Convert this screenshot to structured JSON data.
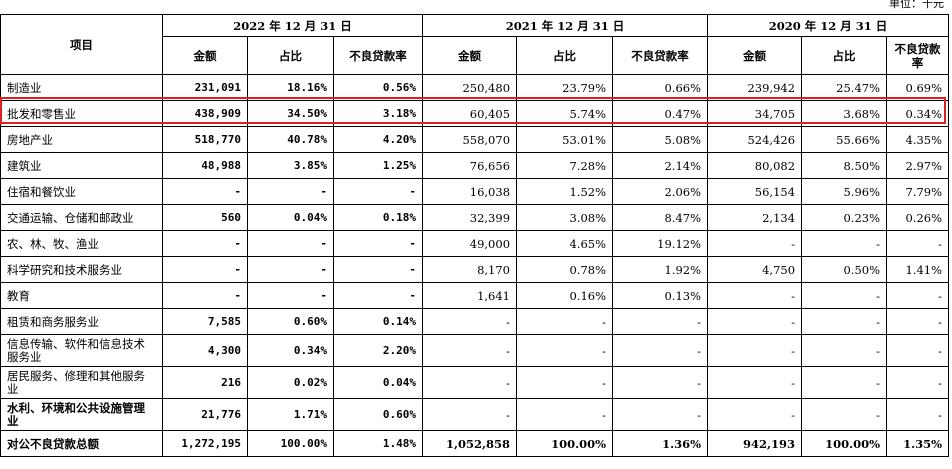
{
  "unit_label": "单位：千元",
  "header": {
    "item": "项目",
    "periods": [
      "2022 年 12 月 31 日",
      "2021 年 12 月 31 日",
      "2020 年 12 月 31 日"
    ],
    "columns": [
      "金额",
      "占比",
      "不良贷款率"
    ]
  },
  "rows": [
    {
      "label": "制造业",
      "c": [
        "231,091",
        "18.16%",
        "0.56%",
        "250,480",
        "23.79%",
        "0.66%",
        "239,942",
        "25.47%",
        "0.69%"
      ]
    },
    {
      "label": "批发和零售业",
      "c": [
        "438,909",
        "34.50%",
        "3.18%",
        "60,405",
        "5.74%",
        "0.47%",
        "34,705",
        "3.68%",
        "0.34%"
      ]
    },
    {
      "label": "房地产业",
      "c": [
        "518,770",
        "40.78%",
        "4.20%",
        "558,070",
        "53.01%",
        "5.08%",
        "524,426",
        "55.66%",
        "4.35%"
      ]
    },
    {
      "label": "建筑业",
      "c": [
        "48,988",
        "3.85%",
        "1.25%",
        "76,656",
        "7.28%",
        "2.14%",
        "80,082",
        "8.50%",
        "2.97%"
      ]
    },
    {
      "label": "住宿和餐饮业",
      "c": [
        "-",
        "-",
        "-",
        "16,038",
        "1.52%",
        "2.06%",
        "56,154",
        "5.96%",
        "7.79%"
      ]
    },
    {
      "label": "交通运输、仓储和邮政业",
      "c": [
        "560",
        "0.04%",
        "0.18%",
        "32,399",
        "3.08%",
        "8.47%",
        "2,134",
        "0.23%",
        "0.26%"
      ]
    },
    {
      "label": "农、林、牧、渔业",
      "c": [
        "-",
        "-",
        "-",
        "49,000",
        "4.65%",
        "19.12%",
        "-",
        "-",
        "-"
      ]
    },
    {
      "label": "科学研究和技术服务业",
      "c": [
        "-",
        "-",
        "-",
        "8,170",
        "0.78%",
        "1.92%",
        "4,750",
        "0.50%",
        "1.41%"
      ]
    },
    {
      "label": "教育",
      "c": [
        "-",
        "-",
        "-",
        "1,641",
        "0.16%",
        "0.13%",
        "-",
        "-",
        "-"
      ]
    },
    {
      "label": "租赁和商务服务业",
      "c": [
        "7,585",
        "0.60%",
        "0.14%",
        "-",
        "-",
        "-",
        "-",
        "-",
        "-"
      ]
    },
    {
      "label": "信息传输、软件和信息技术服务业",
      "c": [
        "4,300",
        "0.34%",
        "2.20%",
        "-",
        "-",
        "-",
        "-",
        "-",
        "-"
      ]
    },
    {
      "label": "居民服务、修理和其他服务业",
      "c": [
        "216",
        "0.02%",
        "0.04%",
        "-",
        "-",
        "-",
        "-",
        "-",
        "-"
      ]
    },
    {
      "label": "水利、环境和公共设施管理业",
      "c": [
        "21,776",
        "1.71%",
        "0.60%",
        "-",
        "-",
        "-",
        "-",
        "-",
        "-"
      ]
    },
    {
      "label": "对公不良贷款总额",
      "c": [
        "1,272,195",
        "100.00%",
        "1.48%",
        "1,052,858",
        "100.00%",
        "1.36%",
        "942,193",
        "100.00%",
        "1.35%"
      ]
    }
  ],
  "highlight_color": "#e02020"
}
